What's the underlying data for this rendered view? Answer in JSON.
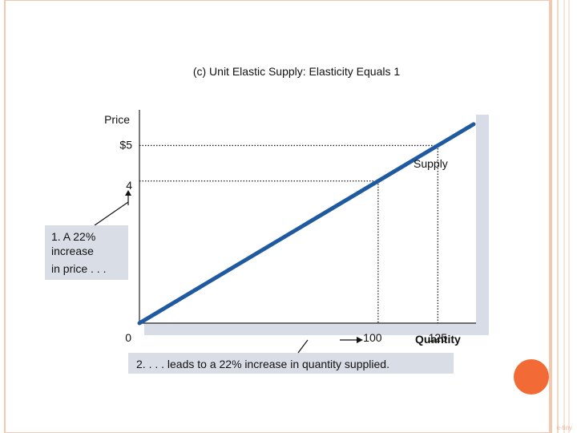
{
  "colors": {
    "frame": "#f4c7b0",
    "plot_bg": "#ffffff",
    "plot_shadow": "#d8dce6",
    "supply_line": "#1f5aa0",
    "callout_bg": "#d9dde6",
    "accent_circle": "#f26a36"
  },
  "chart_data": {
    "type": "line",
    "title": "(c) Unit Elastic Supply: Elasticity Equals 1",
    "ylabel": "Price",
    "xlabel": "Quantity",
    "origin_label": "0",
    "xlim": [
      0,
      140
    ],
    "ylim": [
      0,
      6.5
    ],
    "series": [
      {
        "name": "Supply",
        "x": [
          0,
          125
        ],
        "y": [
          0,
          5
        ]
      }
    ],
    "x_ticks": [
      {
        "value": 100,
        "label": "100"
      },
      {
        "value": 125,
        "label": "125"
      }
    ],
    "y_ticks": [
      {
        "value": 5,
        "label": "$5"
      },
      {
        "value": 4,
        "label": "4"
      }
    ],
    "guides": [
      {
        "x": 100,
        "y": 4
      },
      {
        "x": 125,
        "y": 5
      }
    ],
    "annotations": {
      "price_note": [
        "1. A 22%",
        "increase",
        "in price . . ."
      ],
      "quantity_note": "2. . . . leads to a 22% increase in quantity supplied."
    }
  },
  "footer_note": "e-tiny"
}
